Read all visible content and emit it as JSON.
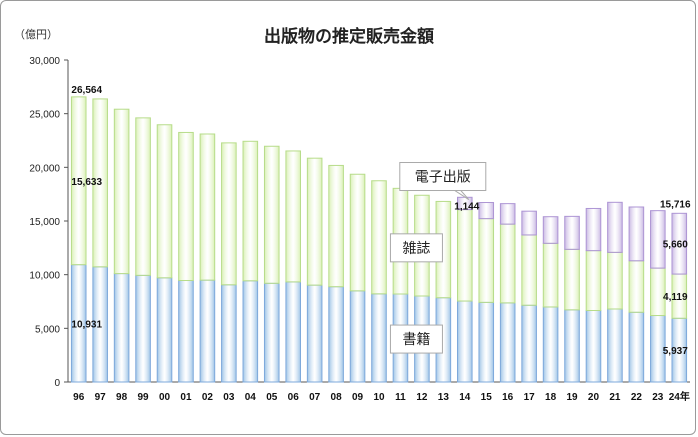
{
  "chart_data": {
    "type": "bar",
    "stacked": true,
    "title": "出版物の推定販売金額",
    "unit_label": "（億円）",
    "ylim": [
      0,
      30000
    ],
    "yticks": [
      "0",
      "5,000",
      "10,000",
      "15,000",
      "20,000",
      "25,000",
      "30,000"
    ],
    "categories": [
      "96",
      "97",
      "98",
      "99",
      "00",
      "01",
      "02",
      "03",
      "04",
      "05",
      "06",
      "07",
      "08",
      "09",
      "10",
      "11",
      "12",
      "13",
      "14",
      "15",
      "16",
      "17",
      "18",
      "19",
      "20",
      "21",
      "22",
      "23",
      "24年"
    ],
    "series": [
      {
        "name": "書籍",
        "color": "#9dc3e6",
        "values": [
          10931,
          10730,
          10100,
          9936,
          9706,
          9456,
          9490,
          9056,
          9429,
          9197,
          9326,
          9026,
          8878,
          8492,
          8213,
          8199,
          8013,
          7851,
          7544,
          7419,
          7370,
          7152,
          6991,
          6723,
          6661,
          6803,
          6497,
          6194,
          5937
        ]
      },
      {
        "name": "雑誌",
        "color": "#d9f0b4",
        "values": [
          15633,
          15644,
          15315,
          14672,
          14261,
          13794,
          13616,
          13222,
          12998,
          12767,
          12200,
          11827,
          11299,
          10864,
          10536,
          9844,
          9385,
          8972,
          8520,
          7801,
          7339,
          6548,
          5930,
          5637,
          5576,
          5276,
          4795,
          4418,
          4119
        ]
      },
      {
        "name": "電子出版",
        "color": "#c9b8e3",
        "values": [
          0,
          0,
          0,
          0,
          0,
          0,
          0,
          0,
          0,
          0,
          0,
          0,
          0,
          0,
          0,
          0,
          0,
          0,
          1144,
          1502,
          1909,
          2215,
          2479,
          3072,
          3931,
          4662,
          5013,
          5351,
          5660
        ]
      }
    ],
    "data_labels": [
      {
        "text": "26,564",
        "category": "96",
        "value": 26564
      },
      {
        "text": "15,633",
        "category": "96",
        "value": 15633
      },
      {
        "text": "10,931",
        "category": "96",
        "value": 10931
      },
      {
        "text": "1,144",
        "category": "14",
        "value": 1144
      },
      {
        "text": "15,716",
        "category": "24年",
        "value": 15716
      },
      {
        "text": "5,660",
        "category": "24年",
        "value": 5660
      },
      {
        "text": "4,119",
        "category": "24年",
        "value": 4119
      },
      {
        "text": "5,937",
        "category": "24年",
        "value": 5937
      }
    ],
    "callouts": [
      "電子出版",
      "雑誌",
      "書籍"
    ],
    "grid": false,
    "legend": "none"
  }
}
